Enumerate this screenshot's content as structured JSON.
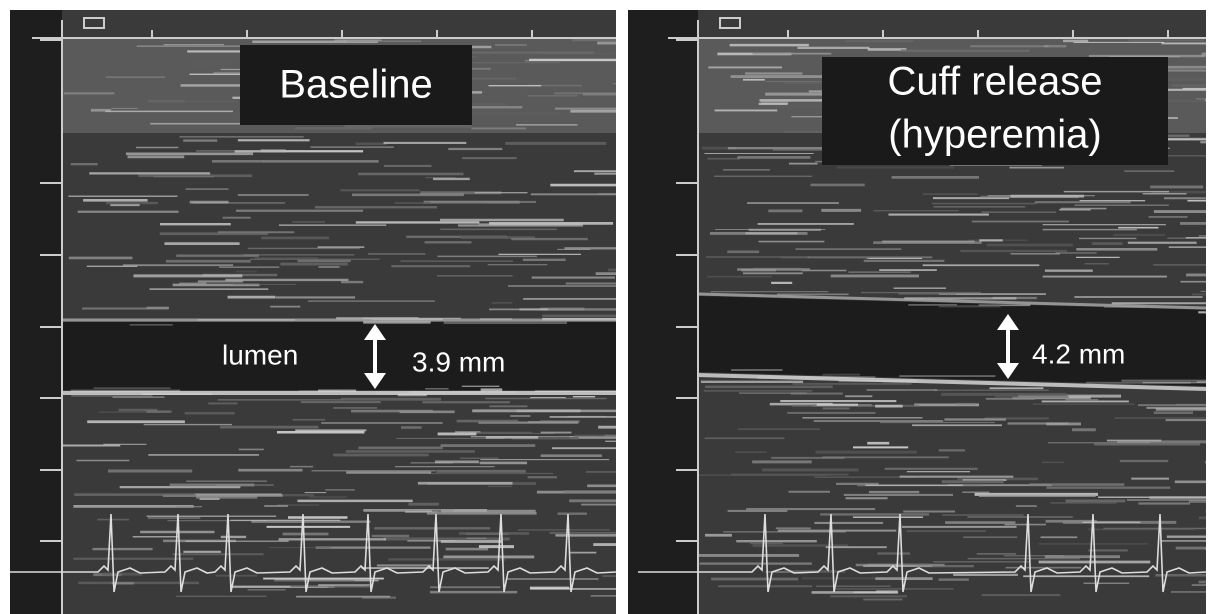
{
  "panels": [
    {
      "label": [
        "Baseline"
      ],
      "lumen_label": "lumen",
      "measurement": "3.9 mm"
    },
    {
      "label": [
        "Cuff release",
        "(hyperemia)"
      ],
      "measurement": "4.2 mm"
    }
  ]
}
